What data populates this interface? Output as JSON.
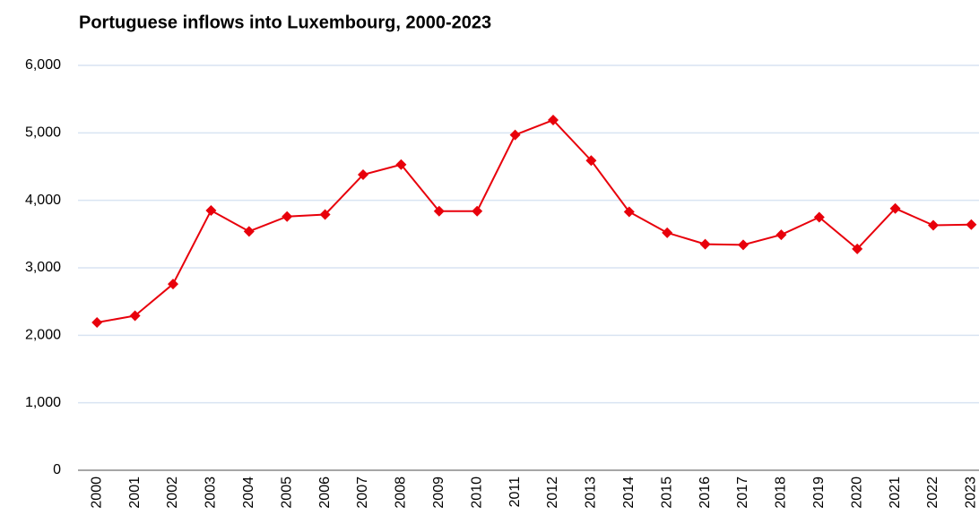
{
  "chart_data": {
    "type": "line",
    "title": "Portuguese inflows into Luxembourg, 2000-2023",
    "categories": [
      "2000",
      "2001",
      "2002",
      "2003",
      "2004",
      "2005",
      "2006",
      "2007",
      "2008",
      "2009",
      "2010",
      "2011",
      "2012",
      "2013",
      "2014",
      "2015",
      "2016",
      "2017",
      "2018",
      "2019",
      "2020",
      "2021",
      "2022",
      "2023"
    ],
    "values": [
      2190,
      2290,
      2760,
      3850,
      3540,
      3760,
      3790,
      4380,
      4530,
      3840,
      3840,
      4970,
      5190,
      4590,
      3830,
      3520,
      3350,
      3340,
      3490,
      3750,
      3280,
      3880,
      3630,
      3640
    ],
    "color": "#e8000b",
    "ylim": [
      0,
      6000
    ],
    "yticks": [
      0,
      {
        "value": 1000,
        "label": "1,000"
      },
      {
        "value": 2000,
        "label": "2,000"
      },
      {
        "value": 3000,
        "label": "3,000"
      },
      {
        "value": 4000,
        "label": "4,000"
      },
      {
        "value": 5000,
        "label": "5,000"
      },
      {
        "value": 6000,
        "label": "6,000"
      }
    ],
    "grid": true
  }
}
